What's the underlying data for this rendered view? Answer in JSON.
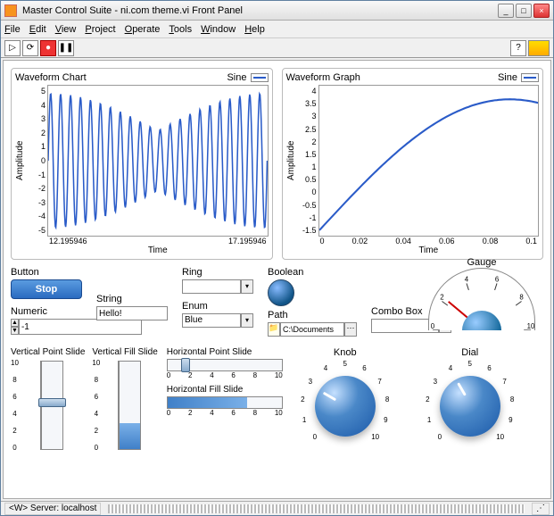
{
  "window": {
    "title": "Master Control Suite - ni.com theme.vi Front Panel"
  },
  "menu": [
    "File",
    "Edit",
    "View",
    "Project",
    "Operate",
    "Tools",
    "Window",
    "Help"
  ],
  "toolbar": {
    "font": "13pt Applicat…"
  },
  "chart1": {
    "title": "Waveform Chart",
    "legend": "Sine",
    "type": "line",
    "line_color": "#2a5bc8",
    "line_width": 1.5,
    "background_color": "#ffffff",
    "grid_color": "#dddddd",
    "ylabel": "Amplitude",
    "xlabel": "Time",
    "ylim": [
      -5,
      5
    ],
    "yticks": [
      "5",
      "4",
      "3",
      "2",
      "1",
      "0",
      "-1",
      "-2",
      "-3",
      "-4",
      "-5"
    ],
    "xlim": [
      12.195946,
      17.195946
    ],
    "xticks": [
      "12.195946",
      "17.195946"
    ],
    "series": {
      "desc": "modulated_sine",
      "cycles": 22,
      "env_min": 2.0,
      "env_max": 4.5
    }
  },
  "chart2": {
    "title": "Waveform Graph",
    "legend": "Sine",
    "type": "line",
    "line_color": "#2a5bc8",
    "line_width": 2,
    "background_color": "#ffffff",
    "grid_color": "#dddddd",
    "ylabel": "Amplitude",
    "xlabel": "Time",
    "ylim": [
      -1.5,
      4
    ],
    "yticks": [
      "4",
      "3.5",
      "3",
      "2.5",
      "2",
      "1.5",
      "1",
      "0.5",
      "0",
      "-0.5",
      "-1",
      "-1.5"
    ],
    "xlim": [
      0,
      0.1
    ],
    "xticks": [
      "0",
      "0.02",
      "0.04",
      "0.06",
      "0.08",
      "0.1"
    ],
    "series": {
      "desc": "rising_arc",
      "start": -1.3,
      "peak": 3.5,
      "peak_x": 0.08
    }
  },
  "controls": {
    "button_label": "Button",
    "stop_label": "Stop",
    "ring_label": "Ring",
    "ring_value": "",
    "boolean_label": "Boolean",
    "numeric_label": "Numeric",
    "numeric_value": "-1",
    "string_label": "String",
    "string_value": "Hello!",
    "enum_label": "Enum",
    "enum_value": "Blue",
    "path_label": "Path",
    "path_value": "C:\\Documents",
    "combo_label": "Combo Box",
    "combo_value": ""
  },
  "gauge": {
    "label": "Gauge",
    "min": 0,
    "max": 10,
    "ticks": [
      "0",
      "2",
      "4",
      "6",
      "8",
      "10"
    ],
    "value": 3,
    "tick_color": "#333",
    "needle_color": "#cc0000"
  },
  "vpoint": {
    "label": "Vertical Point Slide",
    "min": 0,
    "max": 10,
    "ticks": [
      "10",
      "8",
      "6",
      "4",
      "2",
      "0"
    ],
    "value": 5
  },
  "vfill": {
    "label": "Vertical Fill Slide",
    "min": 0,
    "max": 10,
    "ticks": [
      "10",
      "8",
      "6",
      "4",
      "2",
      "0"
    ],
    "value": 3
  },
  "hpoint": {
    "label": "Horizontal Point Slide",
    "min": 0,
    "max": 10,
    "ticks": [
      "0",
      "2",
      "4",
      "6",
      "8",
      "10"
    ],
    "value": 1.5
  },
  "hfill": {
    "label": "Horizontal Fill Slide",
    "min": 0,
    "max": 10,
    "ticks": [
      "0",
      "2",
      "4",
      "6",
      "8",
      "10"
    ],
    "value": 7
  },
  "knob": {
    "label": "Knob",
    "min": 0,
    "max": 10,
    "ticks": [
      "0",
      "0.5",
      "1",
      "1.5",
      "2",
      "2.5",
      "3",
      "3.5",
      "4",
      "4.5",
      "5",
      "5.5",
      "6",
      "6.5",
      "7",
      "7.5",
      "8",
      "8.5",
      "9",
      "9.5",
      "10"
    ],
    "value": 3,
    "body_gradient": [
      "#c5e0ff",
      "#4a88c8",
      "#1a58a8"
    ]
  },
  "dial": {
    "label": "Dial",
    "min": 0,
    "max": 10,
    "ticks": [
      "0",
      "0.5",
      "1",
      "1.5",
      "2",
      "2.5",
      "3",
      "3.5",
      "4",
      "4.5",
      "5",
      "5.5",
      "6",
      "6.5",
      "7",
      "7.5",
      "8",
      "8.5",
      "9",
      "9.5",
      "10"
    ],
    "value": 4,
    "body_gradient": [
      "#c5e0ff",
      "#4a88c8",
      "#1a58a8"
    ]
  },
  "statusbar": {
    "left": "<W> Server: localhost"
  },
  "colors": {
    "accent": "#2a6bc0",
    "chart_line": "#2a5bc8",
    "fill": "#5a9be0"
  }
}
